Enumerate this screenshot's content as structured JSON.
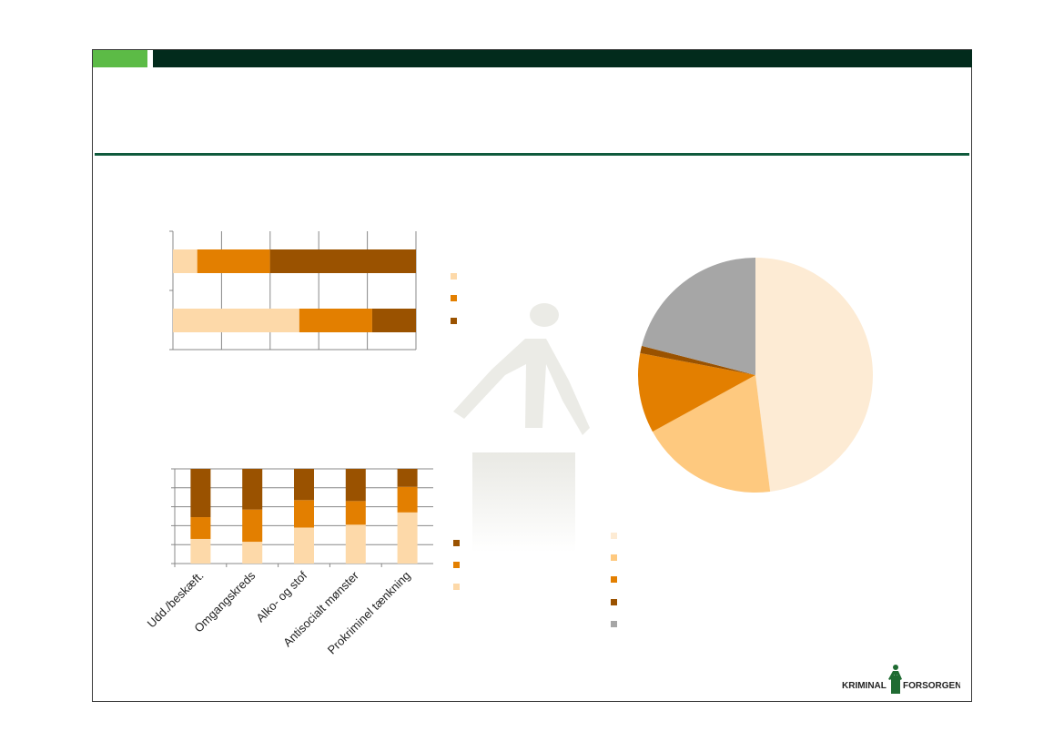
{
  "colors": {
    "light_peach": "#fdd9a9",
    "orange": "#e37f00",
    "brown": "#9a5200",
    "pie_cream": "#fdebd4",
    "pie_light_orange": "#fec97f",
    "pie_orange": "#e37f00",
    "pie_brown": "#9a5200",
    "pie_gray": "#a6a6a6",
    "header_dark": "#022b1c",
    "header_green": "#5cbb46",
    "rule_green": "#0f5a3c"
  },
  "logo": {
    "text_left": "KRIMINAL",
    "text_right": "FORSORGEN"
  },
  "chart_data": [
    {
      "type": "bar",
      "orientation": "horizontal",
      "stacked": true,
      "categories": [
        "",
        ""
      ],
      "series": [
        {
          "values": [
            10,
            52
          ],
          "color": "#fdd9a9"
        },
        {
          "values": [
            30,
            30
          ],
          "color": "#e37f00"
        },
        {
          "values": [
            60,
            18
          ],
          "color": "#9a5200"
        }
      ],
      "xlim": [
        0,
        100
      ],
      "legend": "right"
    },
    {
      "type": "bar",
      "stacked": true,
      "categories": [
        "Udd./beskæft.",
        "Omgangskreds",
        "Alko- og stof",
        "Antisocialt mønster",
        "Prokriminel tænkning"
      ],
      "series": [
        {
          "values": [
            26,
            23,
            38,
            41,
            54
          ],
          "color": "#fdd9a9"
        },
        {
          "values": [
            23,
            34,
            29,
            25,
            27
          ],
          "color": "#e37f00"
        },
        {
          "values": [
            51,
            43,
            33,
            34,
            19
          ],
          "color": "#9a5200"
        }
      ],
      "ylim": [
        0,
        100
      ],
      "legend": "right"
    },
    {
      "type": "pie",
      "values": [
        48,
        19,
        11,
        1,
        21
      ],
      "colors": [
        "#fdebd4",
        "#fec97f",
        "#e37f00",
        "#9a5200",
        "#a6a6a6"
      ],
      "legend": "bottom-left"
    }
  ]
}
